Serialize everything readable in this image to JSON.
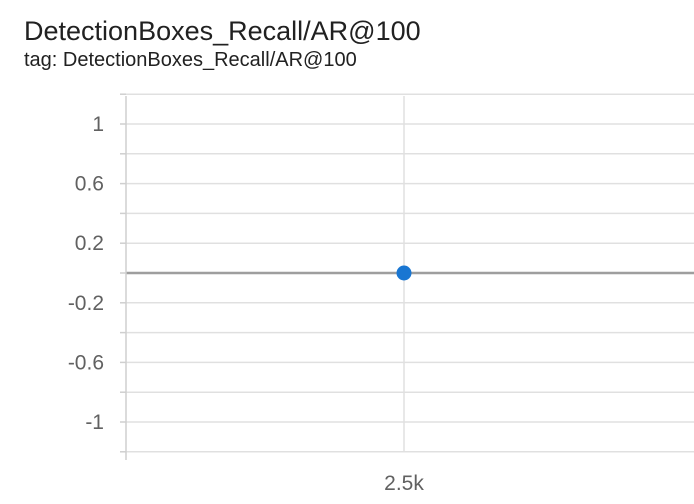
{
  "header": {
    "title": "DetectionBoxes_Recall/AR@100",
    "tag": "tag: DetectionBoxes_Recall/AR@100"
  },
  "chart_data": {
    "type": "scatter",
    "title": "DetectionBoxes_Recall/AR@100",
    "xlabel": "",
    "ylabel": "",
    "ylim": [
      -1.2,
      1.2
    ],
    "yticks": [
      1,
      0.6,
      0.2,
      -0.2,
      -0.6,
      -1
    ],
    "ytick_labels": [
      "1",
      "0.6",
      "0.2",
      "-0.2",
      "-0.6",
      "-1"
    ],
    "xticks": [
      2500
    ],
    "xtick_labels": [
      "2.5k"
    ],
    "grid": true,
    "series": [
      {
        "x": [
          2500
        ],
        "y": [
          0
        ],
        "color": "#1976d2"
      }
    ],
    "zero_line_color": "#9e9e9e",
    "grid_color": "#e0e0e0"
  }
}
